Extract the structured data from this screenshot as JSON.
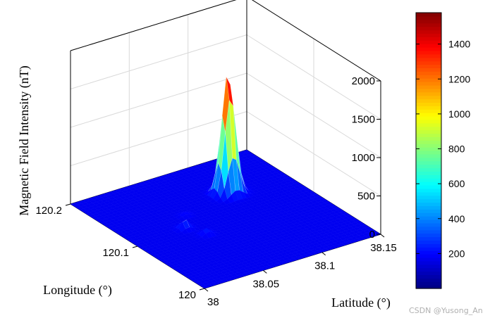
{
  "chart_data": {
    "type": "surface",
    "zlabel": "Magnetic Field Intensity (nT)",
    "xlabel": "Longitude (°)",
    "ylabel": "Latitude (°)",
    "xlim": [
      120,
      120.2
    ],
    "ylim": [
      38,
      38.15
    ],
    "zlim": [
      0,
      2000
    ],
    "z_ticks": [
      "0",
      "500",
      "1000",
      "1500",
      "2000"
    ],
    "x_ticks": [
      "120",
      "120.1",
      "120.2"
    ],
    "y_ticks": [
      "38",
      "38.05",
      "38.1",
      "38.15"
    ],
    "colorbar": {
      "colormap": "jet",
      "range": [
        0,
        1580
      ],
      "ticks": [
        "200",
        "400",
        "600",
        "800",
        "1000",
        "1200",
        "1400"
      ]
    },
    "peaks": [
      {
        "lon": 120.14,
        "lat": 38.1,
        "value": 1580
      },
      {
        "lon": 120.105,
        "lat": 38.043,
        "value": 120
      },
      {
        "lon": 120.085,
        "lat": 38.05,
        "value": 80
      },
      {
        "lon": 120.125,
        "lat": 38.055,
        "value": 40
      }
    ],
    "grid": true,
    "colors": {
      "background": "#ffffff",
      "axis": "#000000",
      "grid": "#d9d9d9",
      "surface_base": "#00008f"
    }
  },
  "watermark": "CSDN @Yusong_An"
}
